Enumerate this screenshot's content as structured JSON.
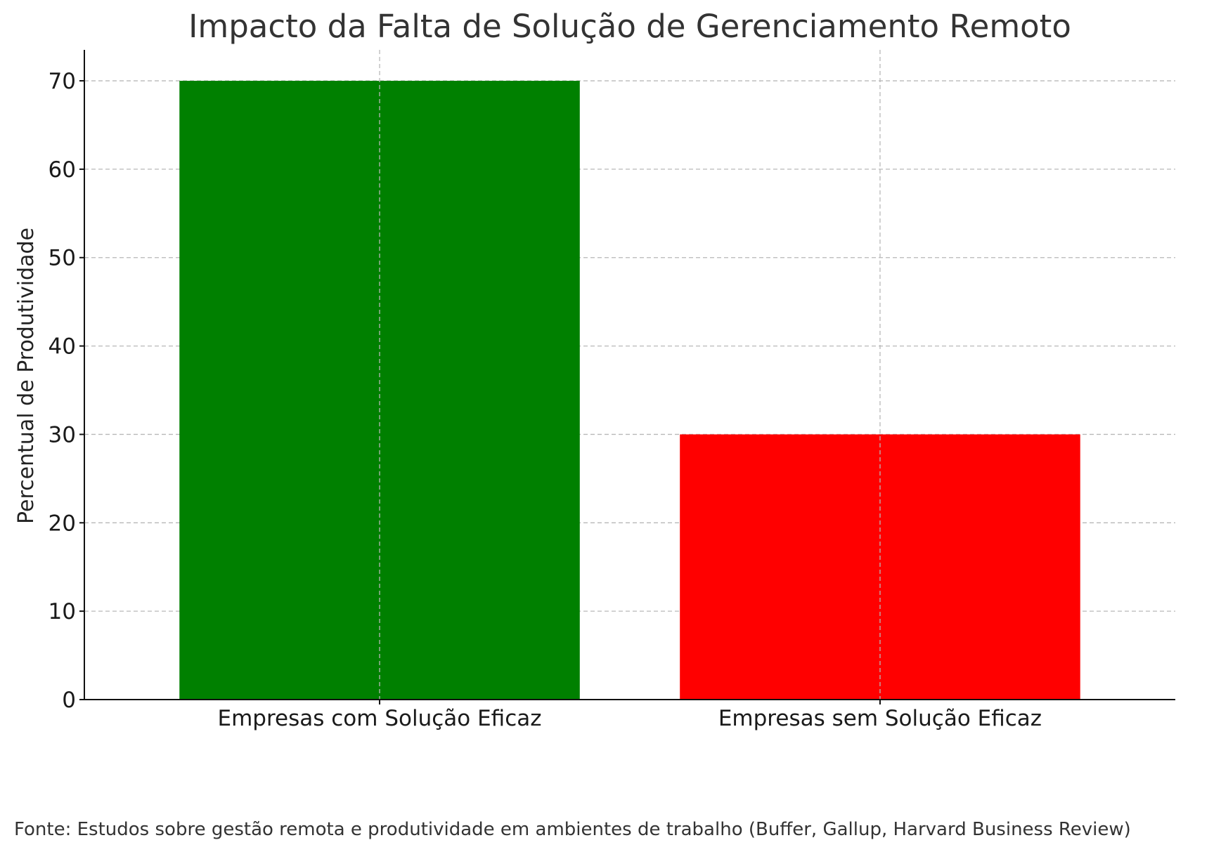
{
  "chart_data": {
    "type": "bar",
    "title": "Impacto da Falta de Solução de Gerenciamento Remoto",
    "xlabel": "",
    "ylabel": "Percentual de Produtividade",
    "categories": [
      "Empresas com Solução Eficaz",
      "Empresas sem Solução Eficaz"
    ],
    "values": [
      70,
      30
    ],
    "colors": [
      "#008000",
      "#ff0000"
    ],
    "ylim": [
      0,
      73.5
    ],
    "yticks": [
      0,
      10,
      20,
      30,
      40,
      50,
      60,
      70
    ],
    "grid": true,
    "legend": "none"
  },
  "source_note": "Fonte: Estudos sobre gestão remota e produtividade em ambientes de trabalho (Buffer, Gallup, Harvard Business Review)"
}
